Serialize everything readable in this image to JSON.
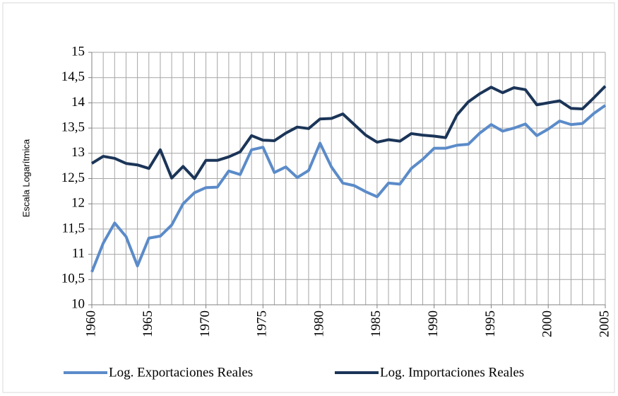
{
  "chart_data": {
    "type": "line",
    "y_label": "Escala Logarítmica",
    "x": [
      1960,
      1961,
      1962,
      1963,
      1964,
      1965,
      1966,
      1967,
      1968,
      1969,
      1970,
      1971,
      1972,
      1973,
      1974,
      1975,
      1976,
      1977,
      1978,
      1979,
      1980,
      1981,
      1982,
      1983,
      1984,
      1985,
      1986,
      1987,
      1988,
      1989,
      1990,
      1991,
      1992,
      1993,
      1994,
      1995,
      1996,
      1997,
      1998,
      1999,
      2000,
      2001,
      2002,
      2003,
      2004,
      2005
    ],
    "series": [
      {
        "name": "Log. Exportaciones Reales",
        "color": "#5b8bc9",
        "values": [
          10.65,
          11.22,
          11.62,
          11.35,
          10.77,
          11.32,
          11.36,
          11.58,
          12.0,
          12.22,
          12.32,
          12.33,
          12.65,
          12.58,
          13.07,
          13.12,
          12.62,
          12.73,
          12.52,
          12.66,
          13.2,
          12.73,
          12.41,
          12.36,
          12.24,
          12.14,
          12.41,
          12.39,
          12.7,
          12.88,
          13.1,
          13.1,
          13.16,
          13.18,
          13.4,
          13.57,
          13.44,
          13.5,
          13.58,
          13.35,
          13.48,
          13.64,
          13.57,
          13.59,
          13.79,
          13.95
        ]
      },
      {
        "name": "Log. Importaciones Reales",
        "color": "#1b3558",
        "values": [
          12.8,
          12.94,
          12.9,
          12.8,
          12.77,
          12.7,
          13.07,
          12.51,
          12.74,
          12.5,
          12.86,
          12.86,
          12.93,
          13.03,
          13.35,
          13.26,
          13.25,
          13.4,
          13.52,
          13.49,
          13.68,
          13.69,
          13.78,
          13.57,
          13.36,
          13.22,
          13.27,
          13.24,
          13.39,
          13.36,
          13.34,
          13.31,
          13.76,
          14.02,
          14.18,
          14.31,
          14.2,
          14.3,
          14.26,
          13.96,
          14.0,
          14.04,
          13.89,
          13.88,
          14.1,
          14.33
        ]
      }
    ],
    "xlim": [
      1960,
      2005
    ],
    "xticks": [
      1960,
      1965,
      1970,
      1975,
      1980,
      1985,
      1990,
      1995,
      2000,
      2005
    ],
    "ylim": [
      10,
      15
    ],
    "yticks": [
      10,
      {
        "value": 10.5,
        "label": "10,5"
      },
      11,
      {
        "value": 11.5,
        "label": "11,5"
      },
      12,
      {
        "value": 12.5,
        "label": "12,5"
      },
      13,
      {
        "value": 13.5,
        "label": "13,5"
      },
      14,
      {
        "value": 14.5,
        "label": "14,5"
      },
      15
    ],
    "grid": true,
    "minor_x_grid": true,
    "legend": "bottom"
  }
}
